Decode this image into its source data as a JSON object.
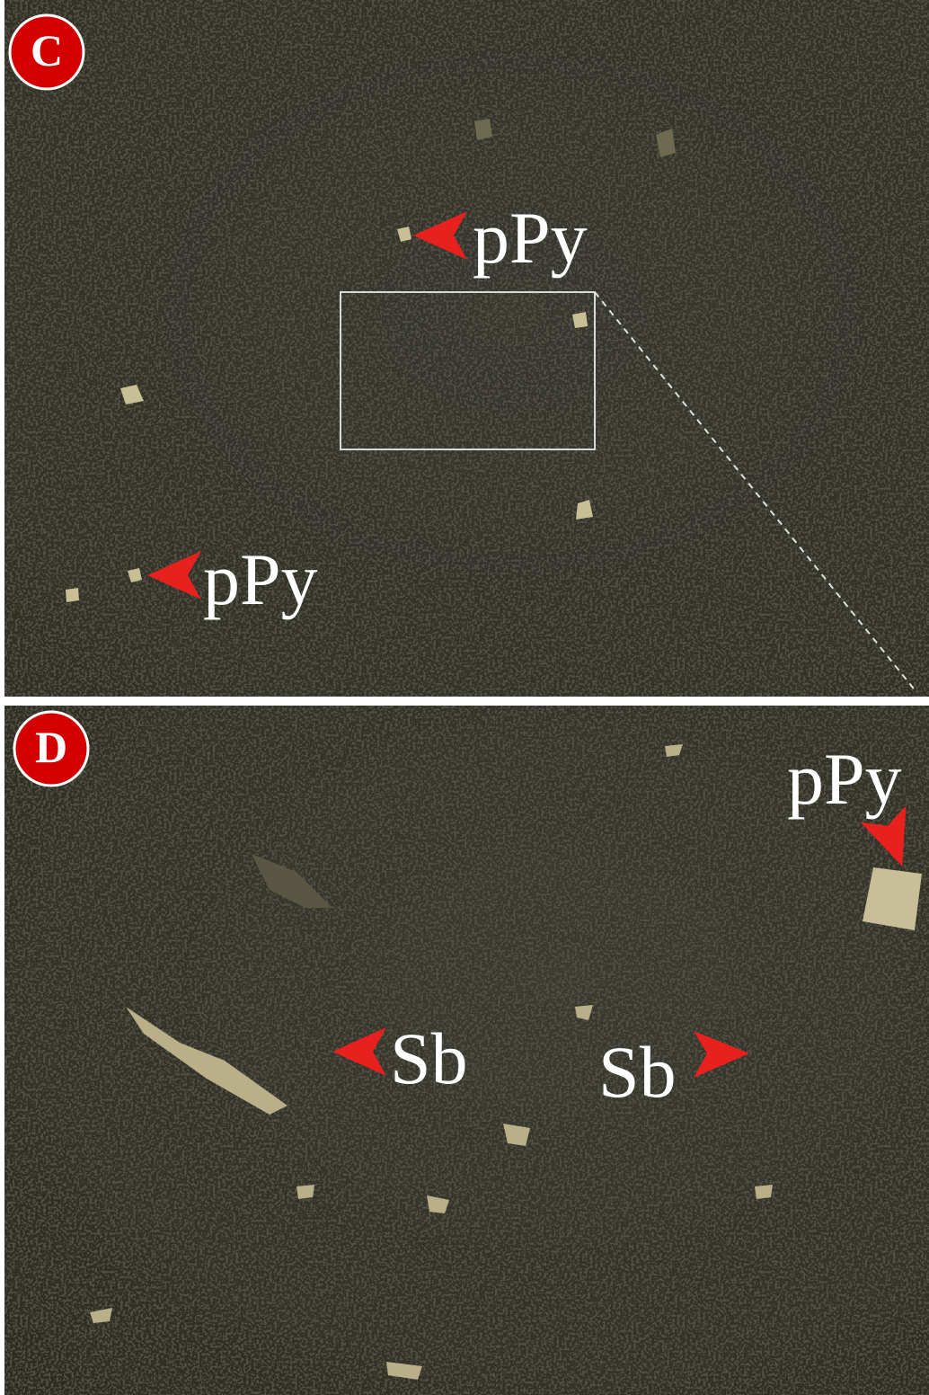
{
  "panels": [
    {
      "label": "C",
      "annotations": [
        "pPy",
        "pPy"
      ]
    },
    {
      "label": "D",
      "annotations": [
        "pPy",
        "Sb",
        "Sb"
      ]
    }
  ]
}
